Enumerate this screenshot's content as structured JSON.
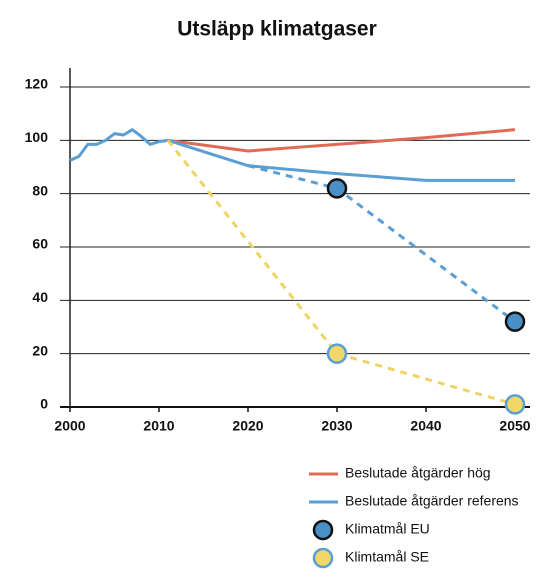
{
  "chart_data": {
    "type": "line",
    "title": "Utsläpp klimatgaser",
    "xlim": [
      2000,
      2050
    ],
    "xticks": [
      2000,
      2010,
      2020,
      2030,
      2040,
      2050
    ],
    "ylim": [
      0,
      120
    ],
    "yticks": [
      0,
      20,
      40,
      60,
      80,
      100,
      120
    ],
    "grid": true,
    "series": [
      {
        "name": "Beslutade åtgärder hög",
        "color": "#e06a55",
        "style": "solid",
        "x": [
          2011,
          2020,
          2030,
          2040,
          2050
        ],
        "values": [
          100,
          96,
          98.5,
          101,
          104
        ]
      },
      {
        "name": "Beslutade åtgärder referens",
        "color": "#5a9fd4",
        "style": "solid",
        "x": [
          2000,
          2001,
          2002,
          2003,
          2004,
          2005,
          2006,
          2007,
          2008,
          2009,
          2010,
          2011,
          2020,
          2030,
          2040,
          2050
        ],
        "values": [
          92.5,
          94,
          98.5,
          98.5,
          100,
          102.5,
          102,
          104,
          101.5,
          98.5,
          99.5,
          100,
          90.5,
          87.5,
          85,
          85
        ]
      },
      {
        "name": "Klimatmål EU",
        "color": "#5a9fd4",
        "marker_fill": "#4a90c8",
        "marker_edge": "#111111",
        "style": "dashed",
        "x": [
          2020,
          2030,
          2050
        ],
        "values": [
          90.5,
          82,
          32
        ],
        "markers": [
          false,
          true,
          true
        ]
      },
      {
        "name": "Klimtamål SE",
        "color": "#ecd565",
        "marker_fill": "#f1d768",
        "marker_edge": "#5a9fd4",
        "style": "dashed",
        "x": [
          2011,
          2030,
          2050
        ],
        "values": [
          100,
          20,
          1
        ],
        "markers": [
          false,
          true,
          true
        ]
      }
    ]
  }
}
